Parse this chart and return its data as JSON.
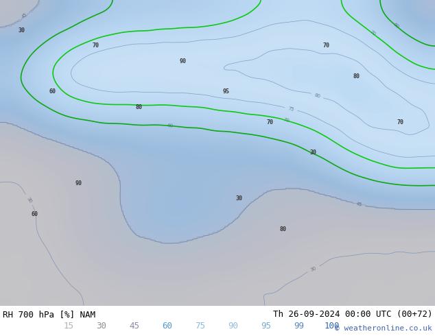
{
  "title_left": "RH 700 hPa [%] NAM",
  "title_right": "Th 26-09-2024 00:00 UTC (00+72)",
  "copyright": "© weatheronline.co.uk",
  "legend_values": [
    15,
    30,
    45,
    60,
    75,
    90,
    95,
    99,
    100
  ],
  "legend_colors": [
    "#d3d3d3",
    "#b0b0b0",
    "#a0a0c0",
    "#6699cc",
    "#99ccff",
    "#cce5ff",
    "#b3d9ff",
    "#80c0ff",
    "#4499ee"
  ],
  "bg_color": "#ffffff",
  "map_bg": "#e8e8e8",
  "fig_width": 6.34,
  "fig_height": 4.9,
  "dpi": 100
}
